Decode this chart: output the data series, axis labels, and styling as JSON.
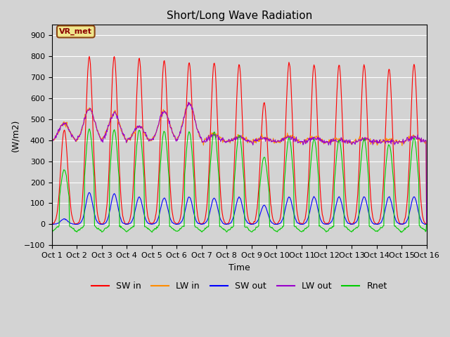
{
  "title": "Short/Long Wave Radiation",
  "xlabel": "Time",
  "ylabel": "(W/m2)",
  "ylim": [
    -100,
    950
  ],
  "yticks": [
    -100,
    0,
    100,
    200,
    300,
    400,
    500,
    600,
    700,
    800,
    900
  ],
  "x_labels": [
    "Oct 1",
    "Oct 2",
    "Oct 3",
    "Oct 4",
    "Oct 5",
    "Oct 6",
    "Oct 7",
    "Oct 8",
    "Oct 9",
    "Oct 10",
    "Oct 11",
    "Oct 12",
    "Oct 13",
    "Oct 14",
    "Oct 15",
    "Oct 16"
  ],
  "num_days": 15,
  "points_per_day": 48,
  "station_label": "VR_met",
  "colors": {
    "SW_in": "#ff0000",
    "LW_in": "#ff8c00",
    "SW_out": "#0000ff",
    "LW_out": "#9900cc",
    "Rnet": "#00cc00"
  },
  "legend_labels": [
    "SW in",
    "LW in",
    "SW out",
    "LW out",
    "Rnet"
  ],
  "plot_bg_color": "#d3d3d3",
  "sw_in_peaks": [
    450,
    800,
    800,
    790,
    780,
    770,
    770,
    760,
    580,
    770,
    760,
    760,
    760,
    740,
    760
  ],
  "lw_in_baseline": 390,
  "lw_in_peaks": [
    480,
    550,
    530,
    465,
    540,
    580,
    430,
    420,
    415,
    420,
    415,
    405,
    410,
    400,
    420
  ],
  "lw_out_baseline": 390,
  "lw_out_peaks": [
    480,
    550,
    530,
    465,
    535,
    575,
    425,
    415,
    410,
    415,
    410,
    400,
    405,
    395,
    415
  ],
  "sw_out_peaks": [
    25,
    150,
    145,
    130,
    125,
    130,
    125,
    130,
    90,
    130,
    130,
    130,
    130,
    130,
    130
  ],
  "rnet_peaks": [
    260,
    455,
    450,
    450,
    445,
    440,
    440,
    425,
    320,
    410,
    405,
    400,
    405,
    380,
    410
  ],
  "rnet_night_min": -80,
  "figsize": [
    6.4,
    4.8
  ],
  "dpi": 100
}
